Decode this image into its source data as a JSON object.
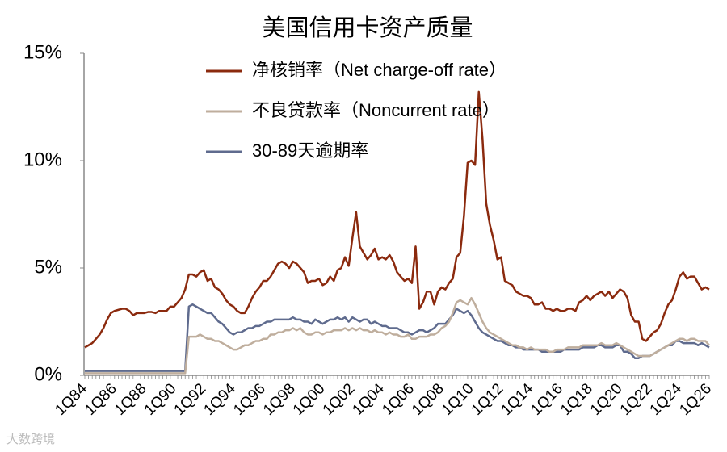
{
  "chart_data": {
    "type": "line",
    "title": "美国信用卡资产质量",
    "categories": [
      "1Q84",
      null,
      null,
      null,
      null,
      null,
      null,
      null,
      "1Q86",
      null,
      null,
      null,
      null,
      null,
      null,
      null,
      "1Q88",
      null,
      null,
      null,
      null,
      null,
      null,
      null,
      "1Q90",
      null,
      null,
      null,
      null,
      null,
      null,
      null,
      "1Q92",
      null,
      null,
      null,
      null,
      null,
      null,
      null,
      "1Q94",
      null,
      null,
      null,
      null,
      null,
      null,
      null,
      "1Q96",
      null,
      null,
      null,
      null,
      null,
      null,
      null,
      "1Q98",
      null,
      null,
      null,
      null,
      null,
      null,
      null,
      "1Q00",
      null,
      null,
      null,
      null,
      null,
      null,
      null,
      "1Q02",
      null,
      null,
      null,
      null,
      null,
      null,
      null,
      "1Q04",
      null,
      null,
      null,
      null,
      null,
      null,
      null,
      "1Q06",
      null,
      null,
      null,
      null,
      null,
      null,
      null,
      "1Q08",
      null,
      null,
      null,
      null,
      null,
      null,
      null,
      "1Q10",
      null,
      null,
      null,
      null,
      null,
      null,
      null,
      "1Q12",
      null,
      null,
      null,
      null,
      null,
      null,
      null,
      "1Q14",
      null,
      null,
      null,
      null,
      null,
      null,
      null,
      "1Q16",
      null,
      null,
      null,
      null,
      null,
      null,
      null,
      "1Q18",
      null,
      null,
      null,
      null,
      null,
      null,
      null,
      "1Q20",
      null,
      null,
      null,
      null,
      null,
      null,
      null,
      "1Q22",
      null,
      null,
      null,
      null,
      null,
      null,
      null,
      "1Q24",
      null,
      null,
      null,
      null,
      null,
      null,
      null,
      "1Q26"
    ],
    "series": [
      {
        "name": "净核销率（Net charge-off rate）",
        "color": "#8b2a0e",
        "values": [
          1.3,
          1.4,
          1.5,
          1.7,
          1.9,
          2.2,
          2.6,
          2.9,
          3.0,
          3.05,
          3.1,
          3.1,
          3.0,
          2.8,
          2.9,
          2.9,
          2.9,
          2.95,
          2.95,
          2.9,
          3.0,
          3.0,
          3.0,
          3.2,
          3.2,
          3.4,
          3.6,
          4.0,
          4.7,
          4.7,
          4.6,
          4.8,
          4.9,
          4.4,
          4.5,
          4.1,
          4.0,
          3.8,
          3.5,
          3.3,
          3.2,
          3.0,
          2.9,
          2.9,
          3.2,
          3.6,
          3.9,
          4.1,
          4.4,
          4.4,
          4.6,
          4.9,
          5.2,
          5.3,
          5.2,
          5.0,
          5.3,
          5.2,
          5.0,
          4.8,
          4.3,
          4.4,
          4.4,
          4.5,
          4.2,
          4.3,
          4.6,
          4.4,
          4.9,
          5.0,
          5.5,
          5.1,
          6.4,
          7.6,
          6.0,
          5.7,
          5.4,
          5.6,
          5.9,
          5.4,
          5.5,
          5.4,
          5.6,
          5.3,
          4.8,
          4.6,
          4.4,
          4.5,
          4.3,
          6.0,
          3.1,
          3.4,
          3.9,
          3.9,
          3.3,
          3.9,
          4.1,
          4.0,
          4.3,
          4.5,
          5.5,
          5.7,
          7.4,
          9.9,
          10.0,
          9.8,
          13.2,
          11.0,
          8.0,
          7.0,
          6.3,
          5.4,
          5.5,
          4.4,
          4.3,
          4.2,
          3.9,
          3.8,
          3.7,
          3.7,
          3.6,
          3.3,
          3.3,
          3.4,
          3.1,
          3.1,
          3.0,
          3.1,
          3.0,
          3.0,
          3.1,
          3.1,
          3.0,
          3.4,
          3.5,
          3.7,
          3.5,
          3.7,
          3.8,
          3.9,
          3.7,
          3.9,
          3.6,
          3.8,
          4.0,
          3.9,
          3.6,
          2.8,
          2.5,
          2.5,
          1.7,
          1.6,
          1.8,
          2.0,
          2.1,
          2.4,
          2.9,
          3.3,
          3.5,
          4.0,
          4.6,
          4.8,
          4.5,
          4.6,
          4.6,
          4.3,
          4.0,
          4.1,
          4.0
        ]
      },
      {
        "name": "不良贷款率（Noncurrent rate）",
        "color": "#bfae9d",
        "values": [
          0.1,
          0.1,
          0.1,
          0.1,
          0.1,
          0.1,
          0.1,
          0.1,
          0.1,
          0.1,
          0.1,
          0.1,
          0.1,
          0.1,
          0.1,
          0.1,
          0.1,
          0.1,
          0.1,
          0.1,
          0.1,
          0.1,
          0.1,
          0.1,
          0.1,
          0.1,
          0.1,
          0.1,
          1.8,
          1.8,
          1.8,
          1.9,
          1.8,
          1.7,
          1.7,
          1.6,
          1.6,
          1.5,
          1.4,
          1.3,
          1.2,
          1.2,
          1.3,
          1.4,
          1.4,
          1.5,
          1.6,
          1.6,
          1.7,
          1.7,
          1.9,
          1.9,
          2.0,
          2.0,
          2.1,
          2.1,
          2.2,
          2.1,
          2.2,
          2.0,
          1.9,
          1.9,
          2.0,
          2.0,
          1.9,
          2.0,
          2.0,
          2.1,
          2.1,
          2.1,
          2.2,
          2.1,
          2.2,
          2.1,
          2.2,
          2.1,
          2.1,
          2.0,
          2.1,
          2.0,
          2.0,
          1.9,
          2.0,
          1.9,
          1.9,
          1.8,
          1.8,
          1.9,
          1.7,
          1.7,
          1.8,
          1.8,
          1.8,
          1.9,
          1.9,
          2.0,
          2.2,
          2.3,
          2.5,
          2.9,
          3.4,
          3.5,
          3.4,
          3.3,
          3.6,
          3.3,
          2.9,
          2.5,
          2.2,
          2.0,
          1.9,
          1.8,
          1.7,
          1.6,
          1.5,
          1.4,
          1.4,
          1.3,
          1.3,
          1.2,
          1.3,
          1.2,
          1.2,
          1.2,
          1.2,
          1.1,
          1.1,
          1.2,
          1.2,
          1.2,
          1.3,
          1.3,
          1.3,
          1.3,
          1.4,
          1.4,
          1.4,
          1.4,
          1.4,
          1.5,
          1.4,
          1.4,
          1.4,
          1.5,
          1.4,
          1.3,
          1.2,
          1.1,
          1.0,
          0.9,
          0.9,
          0.9,
          0.9,
          1.0,
          1.1,
          1.2,
          1.3,
          1.4,
          1.5,
          1.6,
          1.7,
          1.7,
          1.6,
          1.7,
          1.7,
          1.6,
          1.6,
          1.6,
          1.4
        ]
      },
      {
        "name": "30-89天逾期率",
        "color": "#5f6b8e",
        "values": [
          0.2,
          0.2,
          0.2,
          0.2,
          0.2,
          0.2,
          0.2,
          0.2,
          0.2,
          0.2,
          0.2,
          0.2,
          0.2,
          0.2,
          0.2,
          0.2,
          0.2,
          0.2,
          0.2,
          0.2,
          0.2,
          0.2,
          0.2,
          0.2,
          0.2,
          0.2,
          0.2,
          0.2,
          3.2,
          3.3,
          3.2,
          3.1,
          3.0,
          2.9,
          2.9,
          2.7,
          2.5,
          2.4,
          2.2,
          2.0,
          1.9,
          2.0,
          2.0,
          2.1,
          2.2,
          2.2,
          2.3,
          2.3,
          2.4,
          2.5,
          2.5,
          2.6,
          2.6,
          2.6,
          2.6,
          2.6,
          2.7,
          2.6,
          2.6,
          2.5,
          2.5,
          2.4,
          2.6,
          2.5,
          2.4,
          2.5,
          2.6,
          2.6,
          2.7,
          2.6,
          2.7,
          2.5,
          2.7,
          2.6,
          2.5,
          2.6,
          2.6,
          2.4,
          2.5,
          2.4,
          2.3,
          2.3,
          2.2,
          2.2,
          2.2,
          2.1,
          2.0,
          2.0,
          1.9,
          2.0,
          2.1,
          2.1,
          2.0,
          2.1,
          2.2,
          2.4,
          2.4,
          2.4,
          2.6,
          2.8,
          3.1,
          3.0,
          2.9,
          3.0,
          2.8,
          2.5,
          2.2,
          2.0,
          1.9,
          1.8,
          1.7,
          1.6,
          1.6,
          1.5,
          1.4,
          1.4,
          1.3,
          1.3,
          1.2,
          1.2,
          1.2,
          1.2,
          1.2,
          1.1,
          1.1,
          1.1,
          1.1,
          1.1,
          1.1,
          1.2,
          1.2,
          1.2,
          1.2,
          1.2,
          1.3,
          1.3,
          1.3,
          1.3,
          1.4,
          1.4,
          1.3,
          1.3,
          1.3,
          1.4,
          1.4,
          1.1,
          1.1,
          1.0,
          0.8,
          0.8,
          0.9,
          0.9,
          0.9,
          1.0,
          1.1,
          1.2,
          1.3,
          1.4,
          1.4,
          1.6,
          1.6,
          1.5,
          1.5,
          1.5,
          1.5,
          1.4,
          1.5,
          1.4,
          1.3
        ]
      }
    ],
    "ylim": [
      0,
      15
    ],
    "yticks": [
      {
        "value": 0,
        "label": "0%"
      },
      {
        "value": 5,
        "label": "5%"
      },
      {
        "value": 10,
        "label": "10%"
      },
      {
        "value": 15,
        "label": "15%"
      }
    ],
    "grid": false,
    "legend": "upper left",
    "watermark": "大数跨境"
  }
}
